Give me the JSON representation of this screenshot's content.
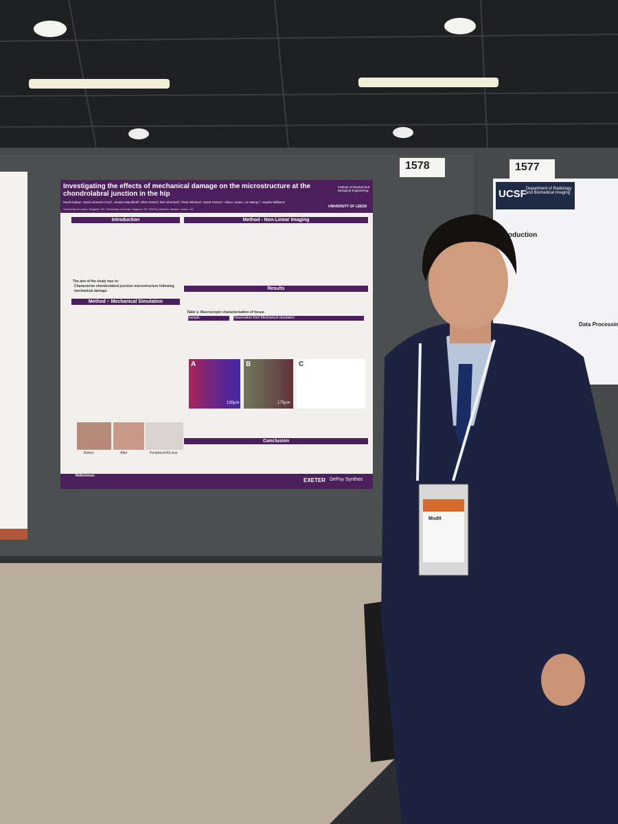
{
  "board_numbers": [
    "1578",
    "1577"
  ],
  "poster": {
    "title": "Investigating the effects of mechanical damage on the microstructure at the chondrolabral junction in the hip",
    "authors": "Mudit Dubey¹, David Jimenez-Cruz², Jessica Mansfield², Ellen Green³, Ben Sherlock², Peter Winlove², Hazel Fermor¹, Alison Jones¹, Lin Wang¹,³, Sophie Williams¹",
    "affiliation": "¹University of Leeds, England, UK; ²University of Exeter, England, UK; ³DePuy Synthes, Boston, Leeds, UK.",
    "institute": "Institute of Medical and Biological Engineering",
    "university": "UNIVERSITY OF LEEDS",
    "sections": [
      "Introduction",
      "Method - Non-Linear Imaging",
      "Method – Mechanical Simulation",
      "Results",
      "Conclusion"
    ],
    "aim_heading": "The aim of the study was to:",
    "aim": "Characterise chondrolabral junction microstructure following mechanical damage.",
    "table_title": "Table 1: Macroscopic characterisation of tissue.",
    "table_header": [
      "Sample",
      "Observation from Mechanical simulation"
    ],
    "figure_labels": [
      "A",
      "B",
      "C"
    ],
    "scale_bars": [
      "130μm",
      "175μm"
    ],
    "image_captions": [
      "Before",
      "After",
      "Peripheral AS tear"
    ],
    "references": "References:",
    "sponsors": [
      "EXETER",
      "DePuy Synthes"
    ]
  },
  "side_poster": {
    "logo": "UCSF",
    "department": "Department of Radiology and Biomedical Imaging",
    "headings": [
      "oduction",
      "Data Processing"
    ]
  },
  "badge": {
    "name": "Mudit"
  }
}
